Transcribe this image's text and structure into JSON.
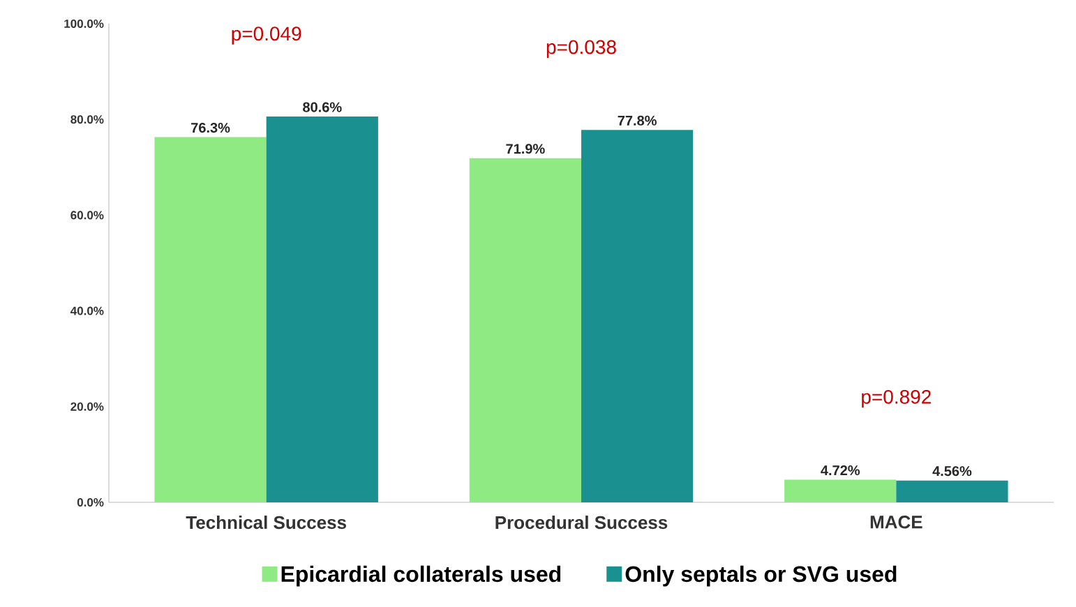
{
  "chart_data": {
    "type": "bar",
    "categories": [
      "Technical Success",
      "Procedural Success",
      "MACE"
    ],
    "series": [
      {
        "name": "Epicardial collaterals used",
        "color": "#90ea84",
        "values": [
          76.3,
          71.9,
          4.72
        ],
        "value_labels": [
          "76.3%",
          "71.9%",
          "4.72%"
        ]
      },
      {
        "name": "Only septals or SVG used",
        "color": "#1a9090",
        "values": [
          80.6,
          77.8,
          4.56
        ],
        "value_labels": [
          "80.6%",
          "77.8%",
          "4.56%"
        ]
      }
    ],
    "ylim": [
      0,
      100
    ],
    "yticks": [
      {
        "value": 0,
        "label": "0.0%"
      },
      {
        "value": 20,
        "label": "20.0%"
      },
      {
        "value": 40,
        "label": "40.0%"
      },
      {
        "value": 60,
        "label": "60.0%"
      },
      {
        "value": 80,
        "label": "80.0%"
      },
      {
        "value": 100,
        "label": "100.0%"
      }
    ],
    "annotations": [
      "p=0.049",
      "p=0.038",
      "p=0.892"
    ],
    "legend": "bottom",
    "grid": false
  }
}
